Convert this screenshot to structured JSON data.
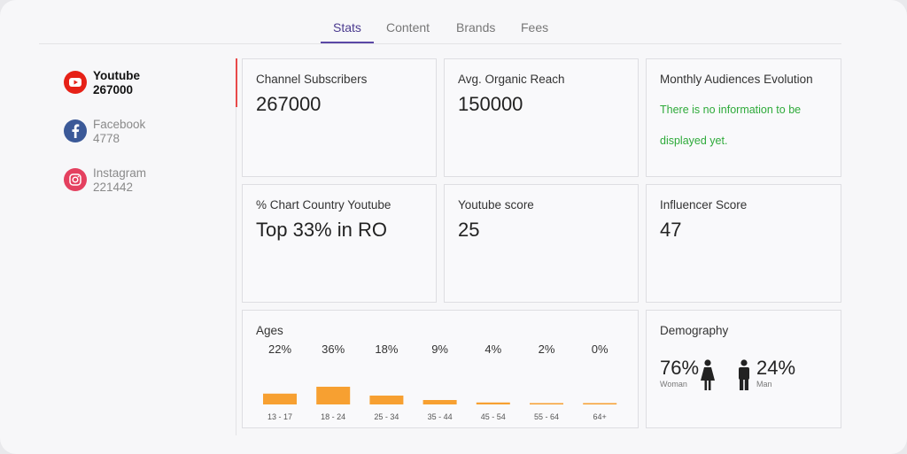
{
  "tabs": [
    {
      "label": "Stats",
      "active": true
    },
    {
      "label": "Content",
      "active": false
    },
    {
      "label": "Brands",
      "active": false
    },
    {
      "label": "Fees",
      "active": false
    }
  ],
  "networks": [
    {
      "name": "Youtube",
      "count": "267000",
      "icon": "youtube-icon",
      "color": "#e62117",
      "active": true
    },
    {
      "name": "Facebook",
      "count": "4778",
      "icon": "facebook-icon",
      "color": "#3b5998",
      "active": false
    },
    {
      "name": "Instagram",
      "count": "221442",
      "icon": "instagram-icon",
      "color": "#e1306c",
      "active": false
    }
  ],
  "cards": {
    "channel_subscribers": {
      "label": "Channel Subscribers",
      "value": "267000"
    },
    "avg_organic_reach": {
      "label": "Avg. Organic Reach",
      "value": "150000"
    },
    "monthly_audiences": {
      "label": "Monthly Audiences Evolution",
      "info": "There is no information to be displayed yet."
    },
    "chart_country": {
      "label": "% Chart Country Youtube",
      "value": "Top 33% in RO"
    },
    "youtube_score": {
      "label": "Youtube score",
      "value": "25"
    },
    "influencer_score": {
      "label": "Influencer Score",
      "value": "47"
    }
  },
  "ages": {
    "label": "Ages",
    "bar_color": "#f7a031"
  },
  "chart_data": {
    "type": "bar",
    "categories": [
      "13 - 17",
      "18 - 24",
      "25 - 34",
      "35 - 44",
      "45 - 54",
      "55 - 64",
      "64+"
    ],
    "values": [
      22,
      36,
      18,
      9,
      4,
      2,
      0
    ],
    "value_labels": [
      "22%",
      "36%",
      "18%",
      "9%",
      "4%",
      "2%",
      "0%"
    ],
    "title": "Ages",
    "xlabel": "",
    "ylabel": "",
    "ylim": [
      0,
      36
    ]
  },
  "demography": {
    "label": "Demography",
    "woman_pct": "76%",
    "woman_label": "Woman",
    "man_pct": "24%",
    "man_label": "Man"
  },
  "colors": {
    "accent": "#5b48a6",
    "info_green": "#2eaa3a",
    "active_marker": "#e84a4a"
  }
}
